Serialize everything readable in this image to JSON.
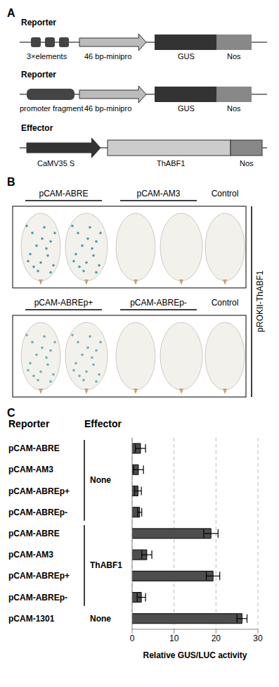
{
  "panel_a": {
    "label": "A",
    "constructs": [
      {
        "title": "Reporter",
        "parts": [
          "3×elements",
          "46 bp-minipro",
          "GUS",
          "Nos"
        ]
      },
      {
        "title": "Reporter",
        "parts": [
          "promoter fragment",
          "46 bp-minipro",
          "GUS",
          "Nos"
        ]
      },
      {
        "title": "Effector",
        "parts": [
          "CaMV35 S",
          "ThABF1",
          "Nos"
        ]
      }
    ]
  },
  "panel_b": {
    "label": "B",
    "side_label": "pROKII-ThABF1",
    "rows": [
      [
        "pCAM-ABRE",
        "pCAM-AM3",
        "Control"
      ],
      [
        "pCAM-ABREp+",
        "pCAM-ABREp-",
        "Control"
      ]
    ]
  },
  "panel_c": {
    "label": "C",
    "column_headers": [
      "Reporter",
      "Effector"
    ]
  },
  "chart_data": {
    "type": "bar",
    "orientation": "horizontal",
    "x_label": "Relative GUS/LUC activity",
    "categories": [
      "pCAM-ABRE",
      "pCAM-AM3",
      "pCAM-ABREp+",
      "pCAM-ABREp-",
      "pCAM-ABRE",
      "pCAM-AM3",
      "pCAM-ABREp+",
      "pCAM-ABREp-",
      "pCAM-1301"
    ],
    "effectors": [
      "None",
      "None",
      "None",
      "None",
      "ThABF1",
      "ThABF1",
      "ThABF1",
      "ThABF1",
      "None"
    ],
    "values": [
      2.0,
      1.5,
      1.4,
      1.8,
      18.8,
      3.5,
      19.3,
      2.2,
      26.2
    ],
    "errors": [
      1.2,
      1.2,
      0.8,
      0.5,
      1.7,
      1.2,
      1.6,
      1.0,
      1.2
    ],
    "color": "#4d4d4d",
    "xlim": [
      0,
      30
    ],
    "xticks": [
      0,
      10,
      20,
      30
    ],
    "grid": true
  }
}
